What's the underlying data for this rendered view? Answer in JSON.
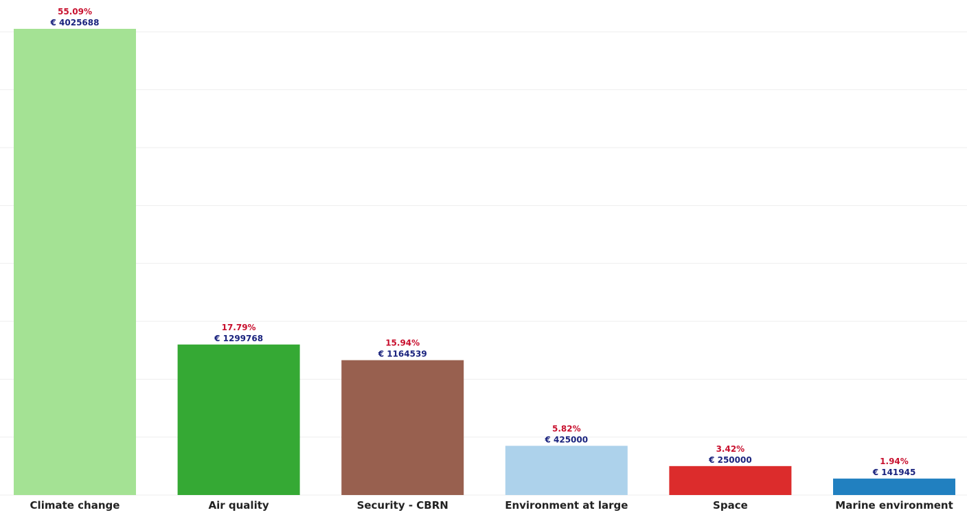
{
  "chart_data": {
    "type": "bar",
    "title": "",
    "xlabel": "",
    "ylabel": "",
    "grid": true,
    "ylim": [
      0,
      4400000
    ],
    "currency_symbol": "€",
    "categories": [
      "Climate change",
      "Air quality",
      "Security - CBRN",
      "Environment at large",
      "Space",
      "Marine environment"
    ],
    "values": [
      4025688,
      1299768,
      1164539,
      425000,
      250000,
      141945
    ],
    "value_labels": [
      "€ 4025688",
      "€ 1299768",
      "€ 1164539",
      "€ 425000",
      "€ 250000",
      "€ 141945"
    ],
    "percent_labels": [
      "55.09%",
      "17.79%",
      "15.94%",
      "5.82%",
      "3.42%",
      "1.94%"
    ],
    "colors": [
      "#a4e294",
      "#35a934",
      "#98604f",
      "#add2eb",
      "#dc2c2c",
      "#2180c0"
    ],
    "label_colors": {
      "percent": "#c8102e",
      "value": "#1a237e"
    }
  }
}
